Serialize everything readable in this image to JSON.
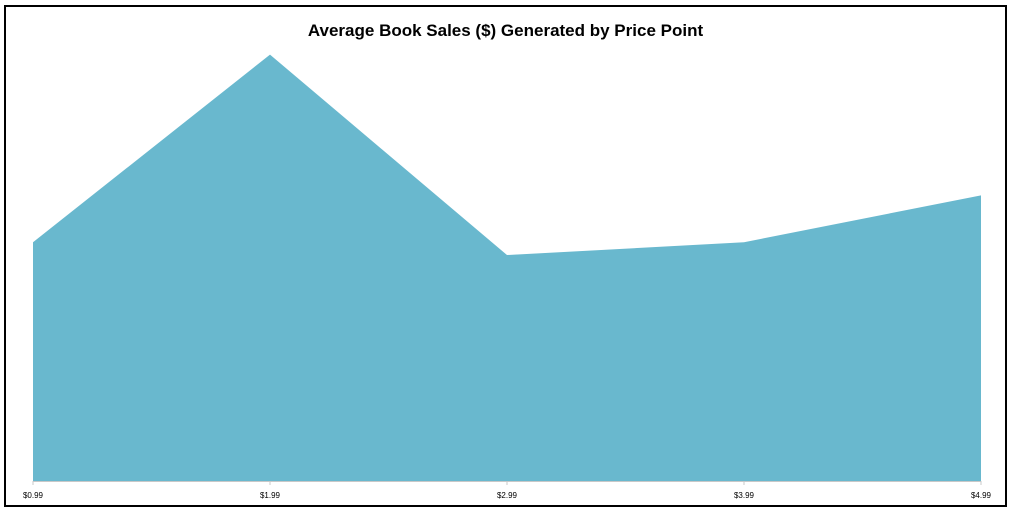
{
  "chart_data": {
    "type": "area",
    "title": "Average Book Sales ($) Generated by Price Point",
    "xlabel": "",
    "ylabel": "",
    "categories": [
      "$0.99",
      "$1.99",
      "$2.99",
      "$3.99",
      "$4.99"
    ],
    "values": [
      56,
      100,
      53,
      56,
      67
    ],
    "ylim": [
      0,
      110
    ],
    "grid": false,
    "legend": "none",
    "colors": {
      "area": "#69b8ce",
      "axis": "#c8c8c8",
      "frame": "#000000"
    }
  }
}
